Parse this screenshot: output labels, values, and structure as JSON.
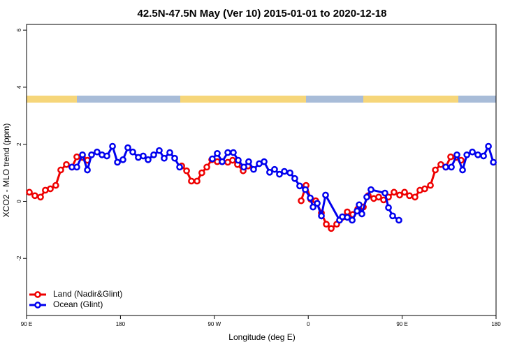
{
  "chart_data": {
    "type": "line",
    "title": "42.5N-47.5N May (Ver 10)   2015-01-01 to 2020-12-18",
    "xlabel": "Longitude (deg E)",
    "ylabel": "XCO2 - MLO trend (ppm)",
    "xlim": [
      90,
      540
    ],
    "xticks": [
      {
        "value": 90,
        "label": "90 E"
      },
      180,
      {
        "value": 270,
        "label": "90 W"
      },
      {
        "value": 360,
        "label": "0"
      },
      {
        "value": 450,
        "label": "90 E"
      },
      {
        "value": 540,
        "label": "180"
      }
    ],
    "ylim": [
      -4,
      6.2
    ],
    "yticks": [
      -2,
      0,
      2,
      4,
      6
    ],
    "legend": "bottomleft",
    "series": [
      {
        "name": "Land (Nadir&Glint)",
        "color": "#ee0000",
        "x": [
          92.7,
          98,
          103.4,
          108,
          112.8,
          118,
          122.8,
          128.2,
          133.5,
          138.2,
          143.6,
          148.3,
          null,
          238.7,
          243.4,
          248,
          253.4,
          258,
          262.8,
          267.5,
          272.8,
          277.5,
          282.9,
          287.5,
          292.2,
          297.6,
          302.3,
          null,
          353.2,
          357.9,
          362.5,
          367.2,
          372.6,
          377.3,
          382,
          387.3,
          392.7,
          397.4,
          402.7,
          407.4,
          412.8,
          417.5,
          422.8,
          427.5,
          432.2,
          436.9,
          442.2,
          447.6,
          452.3,
          457,
          462.3,
          467,
          471.7,
          477.1,
          481.8,
          487.1,
          491.8,
          496.5,
          501.8,
          506.5
        ],
        "values": [
          0.32,
          0.2,
          0.15,
          0.39,
          0.44,
          0.56,
          1.1,
          1.29,
          1.2,
          1.56,
          1.54,
          1.44,
          null,
          1.24,
          1.07,
          0.71,
          0.71,
          1.0,
          1.2,
          1.46,
          1.39,
          1.39,
          1.37,
          1.44,
          1.29,
          1.07,
          1.24,
          null,
          0.02,
          0.56,
          0.07,
          0.02,
          -0.41,
          -0.8,
          -0.95,
          -0.8,
          -0.56,
          -0.37,
          -0.46,
          -0.27,
          -0.2,
          0.2,
          0.1,
          0.15,
          0.05,
          0.15,
          0.32,
          0.22,
          0.32,
          0.2,
          0.15,
          0.39,
          0.44,
          0.56,
          1.1,
          1.29,
          1.2,
          1.56,
          1.54,
          1.44
        ]
      },
      {
        "name": "Ocean (Glint)",
        "color": "#0000ee",
        "x": [
          133.5,
          138.2,
          143.6,
          148.3,
          152.3,
          157.6,
          162.3,
          167,
          172.4,
          177.1,
          182.4,
          187.1,
          191.8,
          197.1,
          201.8,
          206.5,
          211.9,
          217.2,
          221.9,
          227.3,
          232,
          236.7,
          null,
          268.1,
          272.8,
          277.5,
          282.9,
          288.2,
          292.9,
          298.3,
          302.9,
          307.6,
          313,
          317.7,
          323,
          327.7,
          332.4,
          337.1,
          342.5,
          347.1,
          351.8,
          357.2,
          361.9,
          364.6,
          368.6,
          372.6,
          376.6,
          390,
          392.7,
          397.4,
          402.1,
          406.8,
          408.8,
          411.4,
          416.1,
          420.1,
          433.5,
          436.9,
          440.9,
          446.9,
          null,
          491.8,
          497.2,
          502.5,
          507.9,
          512,
          517.3,
          522.6,
          528,
          532.7,
          537.4
        ],
        "values": [
          1.2,
          1.2,
          1.63,
          1.1,
          1.63,
          1.73,
          1.63,
          1.59,
          1.93,
          1.37,
          1.46,
          1.88,
          1.73,
          1.54,
          1.59,
          1.46,
          1.63,
          1.78,
          1.51,
          1.71,
          1.51,
          1.2,
          null,
          1.49,
          1.68,
          1.39,
          1.71,
          1.71,
          1.44,
          1.2,
          1.39,
          1.12,
          1.32,
          1.39,
          1.02,
          1.12,
          0.95,
          1.05,
          1.0,
          0.8,
          0.54,
          0.41,
          0.12,
          -0.2,
          -0.07,
          -0.51,
          0.22,
          -0.66,
          -0.54,
          -0.56,
          -0.66,
          -0.34,
          -0.12,
          -0.44,
          0.15,
          0.41,
          0.29,
          -0.22,
          -0.51,
          -0.66,
          null,
          1.2,
          1.2,
          1.63,
          1.1,
          1.63,
          1.73,
          1.63,
          1.59,
          1.93,
          1.37
        ]
      }
    ]
  }
}
